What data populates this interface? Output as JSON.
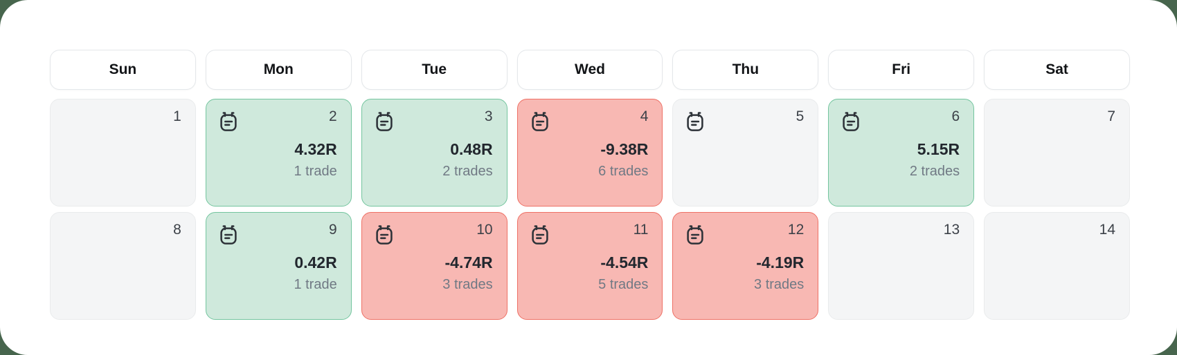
{
  "page": {
    "background_color": "#47654d",
    "card_color": "#ffffff"
  },
  "calendar": {
    "day_headers": [
      "Sun",
      "Mon",
      "Tue",
      "Wed",
      "Thu",
      "Fri",
      "Sat"
    ],
    "weeks": [
      {
        "days": [
          {
            "date": "1",
            "state": "empty",
            "has_note": false,
            "result": "",
            "trades": ""
          },
          {
            "date": "2",
            "state": "win",
            "has_note": true,
            "result": "4.32R",
            "trades": "1 trade"
          },
          {
            "date": "3",
            "state": "win",
            "has_note": true,
            "result": "0.48R",
            "trades": "2 trades"
          },
          {
            "date": "4",
            "state": "loss",
            "has_note": true,
            "result": "-9.38R",
            "trades": "6 trades"
          },
          {
            "date": "5",
            "state": "empty",
            "has_note": true,
            "result": "",
            "trades": ""
          },
          {
            "date": "6",
            "state": "win",
            "has_note": true,
            "result": "5.15R",
            "trades": "2 trades"
          },
          {
            "date": "7",
            "state": "empty",
            "has_note": false,
            "result": "",
            "trades": ""
          }
        ]
      },
      {
        "days": [
          {
            "date": "8",
            "state": "empty",
            "has_note": false,
            "result": "",
            "trades": ""
          },
          {
            "date": "9",
            "state": "win",
            "has_note": true,
            "result": "0.42R",
            "trades": "1 trade"
          },
          {
            "date": "10",
            "state": "loss",
            "has_note": true,
            "result": "-4.74R",
            "trades": "3 trades"
          },
          {
            "date": "11",
            "state": "loss",
            "has_note": true,
            "result": "-4.54R",
            "trades": "5 trades"
          },
          {
            "date": "12",
            "state": "loss",
            "has_note": true,
            "result": "-4.19R",
            "trades": "3 trades"
          },
          {
            "date": "13",
            "state": "empty",
            "has_note": false,
            "result": "",
            "trades": ""
          },
          {
            "date": "14",
            "state": "empty",
            "has_note": false,
            "result": "",
            "trades": ""
          }
        ]
      }
    ],
    "colors": {
      "win_bg": "#cfe9dc",
      "win_border": "#73c59e",
      "loss_bg": "#f8b8b3",
      "loss_border": "#ee7065",
      "empty_bg": "#f4f5f6",
      "empty_border": "#e9ebec"
    }
  }
}
